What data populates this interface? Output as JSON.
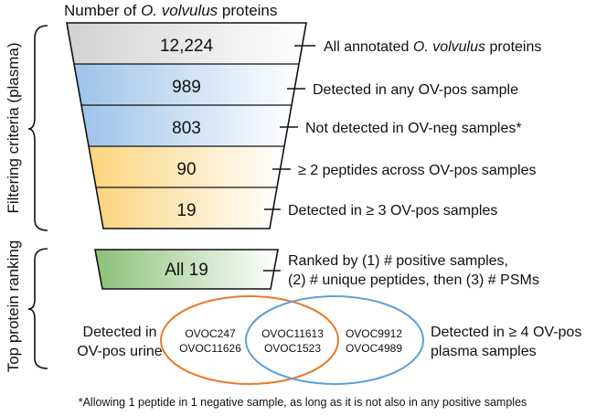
{
  "header": {
    "prefix": "Number of ",
    "species": "O. volvulus",
    "suffix": " proteins"
  },
  "side_labels": {
    "filtering": "Filtering criteria (plasma)",
    "ranking": "Top protein ranking"
  },
  "funnel": [
    {
      "count": "12,224",
      "label_prefix": "All annotated ",
      "label_italic": "O. volvulus",
      "label_suffix": " proteins"
    },
    {
      "count": "989",
      "label": "Detected in any OV-pos sample"
    },
    {
      "count": "803",
      "label": "Not detected in OV-neg samples*"
    },
    {
      "count": "90",
      "label": "≥ 2 peptides across OV-pos samples"
    },
    {
      "count": "19",
      "label": "Detected in ≥ 3 OV-pos samples"
    }
  ],
  "ranking": {
    "box_label": "All 19",
    "line1": "Ranked by (1) # positive samples,",
    "line2": "(2) # unique peptides, then (3) # PSMs"
  },
  "venn": {
    "left_title_1": "Detected in",
    "left_title_2": "OV-pos urine",
    "right_title_1": "Detected in ≥ 4 OV-pos",
    "right_title_2": "plasma samples",
    "left_only": [
      "OVOC247",
      "OVOC11626"
    ],
    "both": [
      "OVOC11613",
      "OVOC1523"
    ],
    "right_only": [
      "OVOC9912",
      "OVOC4989"
    ],
    "left_color": "#e87a2a",
    "right_color": "#5ea0d8"
  },
  "footnote": "*Allowing 1 peptide in 1 negative sample, as long as it is not also in any positive samples",
  "colors": {
    "gray": "#cfcfcf",
    "blue": "#9fc4e8",
    "yellow": "#fcd98a",
    "green": "#8fc27a"
  }
}
